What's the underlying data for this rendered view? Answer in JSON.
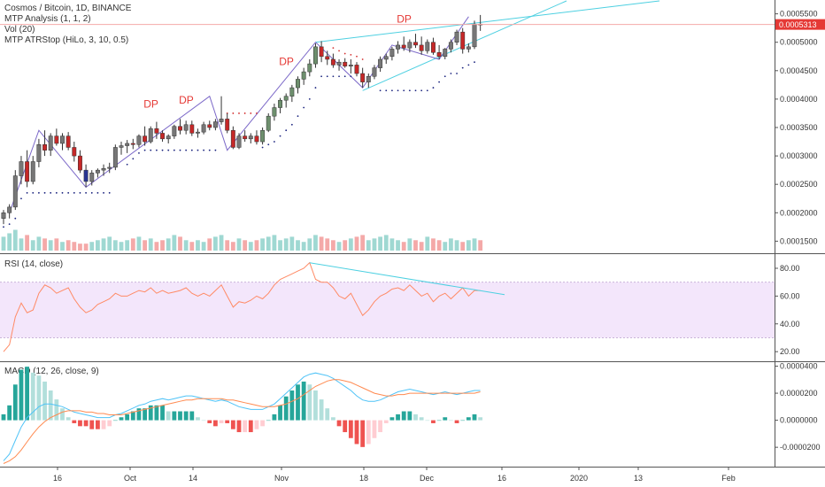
{
  "legend": {
    "symbol": "Cosmos / Bitcoin, 1D, BINANCE",
    "indicator1": "MTP Analysis (1, 1, 2)",
    "indicator2": "Vol (20)",
    "indicator3": "MTP ATRStop (HiLo, 3, 10, 0.5)"
  },
  "rsi_label": "RSI (14, close)",
  "macd_label": "MACD (12, 26, close, 9)",
  "last_price_label": "0.0005313",
  "dp_labels": [
    "DP",
    "DP",
    "DP",
    "DP"
  ],
  "colors": {
    "up": "#26a69a",
    "down": "#ef5350",
    "ink": "#333333",
    "rsi_band": "#f3e6fb",
    "trend": "#4dd0e1",
    "pattern": "#7b68c8",
    "macd_line": "#4fc3f7",
    "signal_line": "#ff8a50"
  },
  "chart_data": [
    {
      "type": "candlestick",
      "name": "price",
      "x_ticks": [
        "16",
        "Oct",
        "14",
        "Nov",
        "18",
        "Dec",
        "16",
        "2020",
        "13",
        "Feb"
      ],
      "y_ticks": [
        "0.0005500",
        "0.0005000",
        "0.0004500",
        "0.0004000",
        "0.0003500",
        "0.0003000",
        "0.0002500",
        "0.0002000",
        "0.0001500"
      ],
      "ylim": [
        0.000135,
        0.000565
      ],
      "last_price": 0.0005313,
      "ohlc": [
        [
          0.00019,
          0.000205,
          0.00018,
          0.0002
        ],
        [
          0.0002,
          0.000215,
          0.00019,
          0.00021
        ],
        [
          0.00021,
          0.000275,
          0.000205,
          0.000265
        ],
        [
          0.000265,
          0.0003,
          0.00025,
          0.00029
        ],
        [
          0.00029,
          0.00031,
          0.000245,
          0.000255
        ],
        [
          0.000255,
          0.0003,
          0.00025,
          0.00029
        ],
        [
          0.00029,
          0.00033,
          0.00028,
          0.00032
        ],
        [
          0.00032,
          0.000345,
          0.0003,
          0.00031
        ],
        [
          0.00031,
          0.00034,
          0.0003,
          0.000335
        ],
        [
          0.000335,
          0.000348,
          0.000318,
          0.000322
        ],
        [
          0.000322,
          0.00034,
          0.00031,
          0.000335
        ],
        [
          0.000335,
          0.000342,
          0.00031,
          0.000315
        ],
        [
          0.000315,
          0.000325,
          0.00029,
          0.0003
        ],
        [
          0.0003,
          0.00031,
          0.00027,
          0.000275
        ],
        [
          0.000275,
          0.000285,
          0.000245,
          0.000255
        ],
        [
          0.000255,
          0.000275,
          0.000248,
          0.00027
        ],
        [
          0.00027,
          0.000278,
          0.000262,
          0.000275
        ],
        [
          0.000275,
          0.000285,
          0.000265,
          0.000278
        ],
        [
          0.000278,
          0.000288,
          0.00027,
          0.00028
        ],
        [
          0.00028,
          0.00032,
          0.000275,
          0.000315
        ],
        [
          0.000315,
          0.000325,
          0.000302,
          0.000318
        ],
        [
          0.000318,
          0.000328,
          0.000305,
          0.000322
        ],
        [
          0.000322,
          0.00033,
          0.000312,
          0.00032
        ],
        [
          0.00032,
          0.000338,
          0.000315,
          0.000335
        ],
        [
          0.000335,
          0.000352,
          0.000318,
          0.000325
        ],
        [
          0.000325,
          0.000352,
          0.000322,
          0.000348
        ],
        [
          0.000348,
          0.00036,
          0.00033,
          0.00034
        ],
        [
          0.00034,
          0.000345,
          0.000325,
          0.00033
        ],
        [
          0.00033,
          0.000338,
          0.000322,
          0.000335
        ],
        [
          0.000335,
          0.000355,
          0.00033,
          0.000352
        ],
        [
          0.000352,
          0.000365,
          0.000338,
          0.000345
        ],
        [
          0.000345,
          0.000362,
          0.000338,
          0.000355
        ],
        [
          0.000355,
          0.000362,
          0.000335,
          0.00034
        ],
        [
          0.00034,
          0.000348,
          0.000332,
          0.000342
        ],
        [
          0.000342,
          0.00036,
          0.000338,
          0.000355
        ],
        [
          0.000355,
          0.000362,
          0.000345,
          0.00035
        ],
        [
          0.00035,
          0.000365,
          0.000345,
          0.00036
        ],
        [
          0.00036,
          0.000405,
          0.000355,
          0.000365
        ],
        [
          0.000365,
          0.000375,
          0.00034,
          0.000345
        ],
        [
          0.000345,
          0.000352,
          0.000312,
          0.000315
        ],
        [
          0.000315,
          0.00034,
          0.000312,
          0.000335
        ],
        [
          0.000335,
          0.000345,
          0.000325,
          0.00033
        ],
        [
          0.00033,
          0.00034,
          0.000322,
          0.000335
        ],
        [
          0.000335,
          0.000345,
          0.00032,
          0.000325
        ],
        [
          0.000325,
          0.00035,
          0.00032,
          0.000345
        ],
        [
          0.000345,
          0.000375,
          0.000342,
          0.00037
        ],
        [
          0.00037,
          0.000392,
          0.000362,
          0.000385
        ],
        [
          0.000385,
          0.000402,
          0.000375,
          0.000398
        ],
        [
          0.000398,
          0.00041,
          0.000385,
          0.000405
        ],
        [
          0.000405,
          0.000425,
          0.000395,
          0.00042
        ],
        [
          0.00042,
          0.00044,
          0.00041,
          0.000435
        ],
        [
          0.000435,
          0.000455,
          0.000425,
          0.000448
        ],
        [
          0.000448,
          0.00047,
          0.00044,
          0.000462
        ],
        [
          0.000462,
          0.000498,
          0.000455,
          0.000492
        ],
        [
          0.000492,
          0.000502,
          0.000465,
          0.000475
        ],
        [
          0.000475,
          0.000485,
          0.00046,
          0.00047
        ],
        [
          0.00047,
          0.00048,
          0.000455,
          0.00046
        ],
        [
          0.00046,
          0.00047,
          0.00045,
          0.000465
        ],
        [
          0.000465,
          0.000472,
          0.000455,
          0.000458
        ],
        [
          0.000458,
          0.00047,
          0.000445,
          0.00046
        ],
        [
          0.00046,
          0.000465,
          0.00044,
          0.000445
        ],
        [
          0.000445,
          0.000455,
          0.00042,
          0.00043
        ],
        [
          0.00043,
          0.000445,
          0.00042,
          0.00044
        ],
        [
          0.00044,
          0.00046,
          0.000435,
          0.000455
        ],
        [
          0.000455,
          0.000475,
          0.000448,
          0.00047
        ],
        [
          0.00047,
          0.00048,
          0.000462,
          0.000475
        ],
        [
          0.000475,
          0.000492,
          0.000468,
          0.000488
        ],
        [
          0.000488,
          0.000502,
          0.00048,
          0.000495
        ],
        [
          0.000495,
          0.00051,
          0.000485,
          0.00049
        ],
        [
          0.00049,
          0.000505,
          0.000482,
          0.0005
        ],
        [
          0.0005,
          0.000515,
          0.00049,
          0.000495
        ],
        [
          0.000495,
          0.00051,
          0.000478,
          0.000485
        ],
        [
          0.000485,
          0.000505,
          0.00048,
          0.0005
        ],
        [
          0.0005,
          0.000508,
          0.000478,
          0.000482
        ],
        [
          0.000482,
          0.000495,
          0.00047,
          0.000475
        ],
        [
          0.000475,
          0.00049,
          0.00047,
          0.000488
        ],
        [
          0.000488,
          0.000505,
          0.000482,
          0.0005
        ],
        [
          0.0005,
          0.000522,
          0.000495,
          0.000518
        ],
        [
          0.000518,
          0.000525,
          0.00048,
          0.000488
        ],
        [
          0.000488,
          0.000498,
          0.000482,
          0.000492
        ],
        [
          0.000492,
          0.000538,
          0.000488,
          0.000532
        ],
        [
          0.000532,
          0.000548,
          0.00052,
          0.000531
        ]
      ],
      "stop_upper": [
        null,
        null,
        null,
        null,
        null,
        null,
        null,
        null,
        null,
        null,
        null,
        null,
        null,
        null,
        null,
        null,
        null,
        null,
        null,
        null,
        null,
        null,
        null,
        null,
        null,
        null,
        null,
        null,
        null,
        null,
        null,
        null,
        null,
        null,
        null,
        null,
        null,
        null,
        0.000375,
        0.000375,
        0.000375,
        0.000375,
        0.000375,
        0.000375,
        null,
        null,
        null,
        null,
        null,
        null,
        null,
        null,
        null,
        null,
        null,
        null,
        0.00049,
        0.000485,
        0.00048,
        0.000478,
        0.000475,
        0.00047,
        null,
        null,
        null,
        null,
        null,
        null,
        null,
        null,
        null,
        null,
        null,
        null,
        null,
        null,
        null,
        null,
        null,
        null,
        null
      ],
      "stop_lower": [
        0.000175,
        0.00018,
        0.00019,
        0.000225,
        0.000235,
        0.000235,
        0.000235,
        0.000235,
        0.000235,
        0.000235,
        0.000235,
        0.000235,
        0.000235,
        0.000235,
        0.000235,
        0.000235,
        0.000235,
        0.000235,
        0.000235,
        null,
        null,
        0.000285,
        0.000295,
        0.000305,
        0.00031,
        0.00031,
        0.00031,
        0.00031,
        0.00031,
        0.00031,
        0.00031,
        0.00031,
        0.00031,
        0.00031,
        0.00031,
        0.00031,
        0.00031,
        null,
        null,
        null,
        null,
        null,
        null,
        null,
        0.000315,
        0.00032,
        0.000325,
        0.000335,
        0.000345,
        0.000355,
        0.00037,
        0.000385,
        0.0004,
        0.00042,
        0.00044,
        0.00044,
        0.00044,
        0.00044,
        0.00044,
        0.00044,
        null,
        null,
        null,
        null,
        0.000415,
        0.000415,
        0.000415,
        0.000415,
        0.000415,
        0.000415,
        0.000415,
        0.000415,
        0.000415,
        0.00042,
        0.00043,
        0.00044,
        0.000445,
        0.000445,
        0.000455,
        0.00046,
        0.000465
      ],
      "volume": [
        8,
        10,
        12,
        7,
        9,
        6,
        8,
        7,
        6,
        7,
        5,
        6,
        5,
        4,
        4,
        5,
        6,
        7,
        8,
        6,
        5,
        6,
        7,
        8,
        6,
        7,
        5,
        6,
        7,
        9,
        8,
        6,
        5,
        6,
        5,
        7,
        8,
        9,
        6,
        5,
        7,
        6,
        5,
        6,
        7,
        8,
        9,
        6,
        7,
        8,
        6,
        5,
        7,
        9,
        8,
        7,
        6,
        5,
        6,
        7,
        8,
        9,
        6,
        7,
        8,
        9,
        7,
        6,
        5,
        7,
        6,
        5,
        8,
        7,
        6,
        5,
        7,
        6,
        5,
        6,
        7,
        6
      ],
      "volume_max": 22,
      "pattern_points": [
        [
          1,
          0.0002
        ],
        [
          6,
          0.000345
        ],
        [
          14,
          0.000245
        ],
        [
          35,
          0.000405
        ],
        [
          38,
          0.00031
        ],
        [
          53,
          0.0005
        ],
        [
          61,
          0.00042
        ],
        [
          66,
          0.000495
        ],
        [
          74,
          0.00047
        ],
        [
          79,
          0.000545
        ]
      ],
      "dp_positions": [
        [
          25,
          0.000385
        ],
        [
          31,
          0.000392
        ],
        [
          48,
          0.00046
        ],
        [
          68,
          0.000535
        ]
      ]
    },
    {
      "type": "line",
      "name": "RSI",
      "title": "RSI (14, close)",
      "y_ticks": [
        "80.00",
        "60.00",
        "40.00",
        "20.00"
      ],
      "ylim": [
        15,
        87
      ],
      "band": [
        30,
        70
      ],
      "values": [
        20,
        25,
        45,
        55,
        48,
        50,
        62,
        68,
        66,
        62,
        64,
        66,
        58,
        52,
        48,
        50,
        54,
        56,
        58,
        62,
        60,
        60,
        62,
        64,
        63,
        66,
        62,
        64,
        62,
        63,
        64,
        66,
        62,
        60,
        62,
        60,
        64,
        68,
        60,
        52,
        56,
        55,
        57,
        60,
        58,
        62,
        68,
        72,
        74,
        76,
        78,
        80,
        84,
        72,
        70,
        70,
        66,
        60,
        58,
        62,
        54,
        46,
        50,
        56,
        60,
        62,
        65,
        66,
        64,
        68,
        64,
        60,
        62,
        56,
        60,
        62,
        58,
        62,
        66,
        60,
        64,
        64
      ],
      "trend_points": [
        [
          52,
          84
        ],
        [
          82,
          61
        ]
      ]
    },
    {
      "type": "macd",
      "name": "MACD",
      "title": "MACD (12, 26, close, 9)",
      "y_ticks": [
        "0.0000400",
        "0.0000200",
        "0.0000000",
        "-0.0000200"
      ],
      "ylim": [
        -3.3e-05,
        4.1e-05
      ],
      "macd": [
        -3e-05,
        -2.5e-05,
        -1.5e-05,
        -5e-06,
        2e-06,
        6e-06,
        1e-05,
        1.2e-05,
        1.2e-05,
        1.1e-05,
        1e-05,
        8e-06,
        6e-06,
        5e-06,
        4e-06,
        3e-06,
        2e-06,
        2e-06,
        2e-06,
        4e-06,
        5e-06,
        7e-06,
        9e-06,
        1.1e-05,
        1.2e-05,
        1.4e-05,
        1.5e-05,
        1.6e-05,
        1.5e-05,
        1.6e-05,
        1.7e-05,
        1.8e-05,
        1.8e-05,
        1.7e-05,
        1.6e-05,
        1.5e-05,
        1.4e-05,
        1.5e-05,
        1.4e-05,
        1.2e-05,
        1e-05,
        9e-06,
        8e-06,
        8e-06,
        8e-06,
        1e-05,
        1.2e-05,
        1.6e-05,
        2e-05,
        2.4e-05,
        2.8e-05,
        3.2e-05,
        3.4e-05,
        3.5e-05,
        3.4e-05,
        3.3e-05,
        3.1e-05,
        2.8e-05,
        2.5e-05,
        2.2e-05,
        1.8e-05,
        1.5e-05,
        1.4e-05,
        1.4e-05,
        1.5e-05,
        1.7e-05,
        1.9e-05,
        2.1e-05,
        2.2e-05,
        2.3e-05,
        2.2e-05,
        2.1e-05,
        2e-05,
        1.9e-05,
        2e-05,
        2.1e-05,
        2e-05,
        1.9e-05,
        2e-05,
        2.1e-05,
        2.2e-05,
        2.2e-05
      ],
      "signal": [
        -3.2e-05,
        -3e-05,
        -2.7e-05,
        -2.2e-05,
        -1.6e-05,
        -1e-05,
        -5e-06,
        -1e-06,
        2e-06,
        4e-06,
        6e-06,
        7e-06,
        7e-06,
        7e-06,
        6e-06,
        6e-06,
        5e-06,
        5e-06,
        4e-06,
        4e-06,
        4e-06,
        5e-06,
        6e-06,
        7e-06,
        8e-06,
        9e-06,
        1e-05,
        1.1e-05,
        1.2e-05,
        1.3e-05,
        1.4e-05,
        1.5e-05,
        1.5e-05,
        1.6e-05,
        1.6e-05,
        1.6e-05,
        1.6e-05,
        1.6e-05,
        1.5e-05,
        1.5e-05,
        1.4e-05,
        1.3e-05,
        1.2e-05,
        1.1e-05,
        1e-05,
        1e-05,
        1e-05,
        1.1e-05,
        1.2e-05,
        1.4e-05,
        1.6e-05,
        1.9e-05,
        2.2e-05,
        2.5e-05,
        2.7e-05,
        2.9e-05,
        3e-05,
        3e-05,
        2.9e-05,
        2.8e-05,
        2.6e-05,
        2.4e-05,
        2.2e-05,
        2e-05,
        1.9e-05,
        1.8e-05,
        1.8e-05,
        1.9e-05,
        1.9e-05,
        2e-05,
        2e-05,
        2e-05,
        2e-05,
        2e-05,
        2e-05,
        2e-05,
        2e-05,
        2e-05,
        2e-05,
        2e-05,
        2e-05,
        2.1e-05
      ]
    }
  ]
}
